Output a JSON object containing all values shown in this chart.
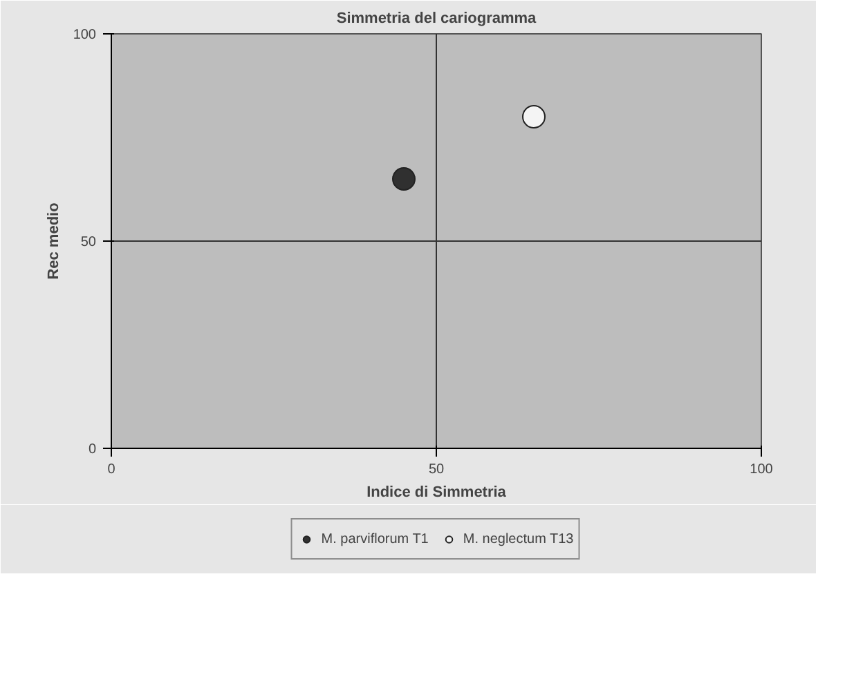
{
  "chart_data": {
    "type": "scatter",
    "title": "Simmetria del cariogramma",
    "xlabel": "Indice di Simmetria",
    "ylabel": "Rec medio",
    "xlim": [
      0,
      100
    ],
    "ylim": [
      0,
      100
    ],
    "xticks": [
      0,
      50,
      100
    ],
    "yticks": [
      0,
      50,
      100
    ],
    "grid": true,
    "legend": "bottom",
    "marker": "circle",
    "series": [
      {
        "name": "M. parviflorum T1",
        "color": "#303030",
        "x": [
          45
        ],
        "values": [
          65
        ]
      },
      {
        "name": "M. neglectum T13",
        "color": "#f4f4f4",
        "x": [
          65
        ],
        "values": [
          80
        ]
      }
    ]
  }
}
